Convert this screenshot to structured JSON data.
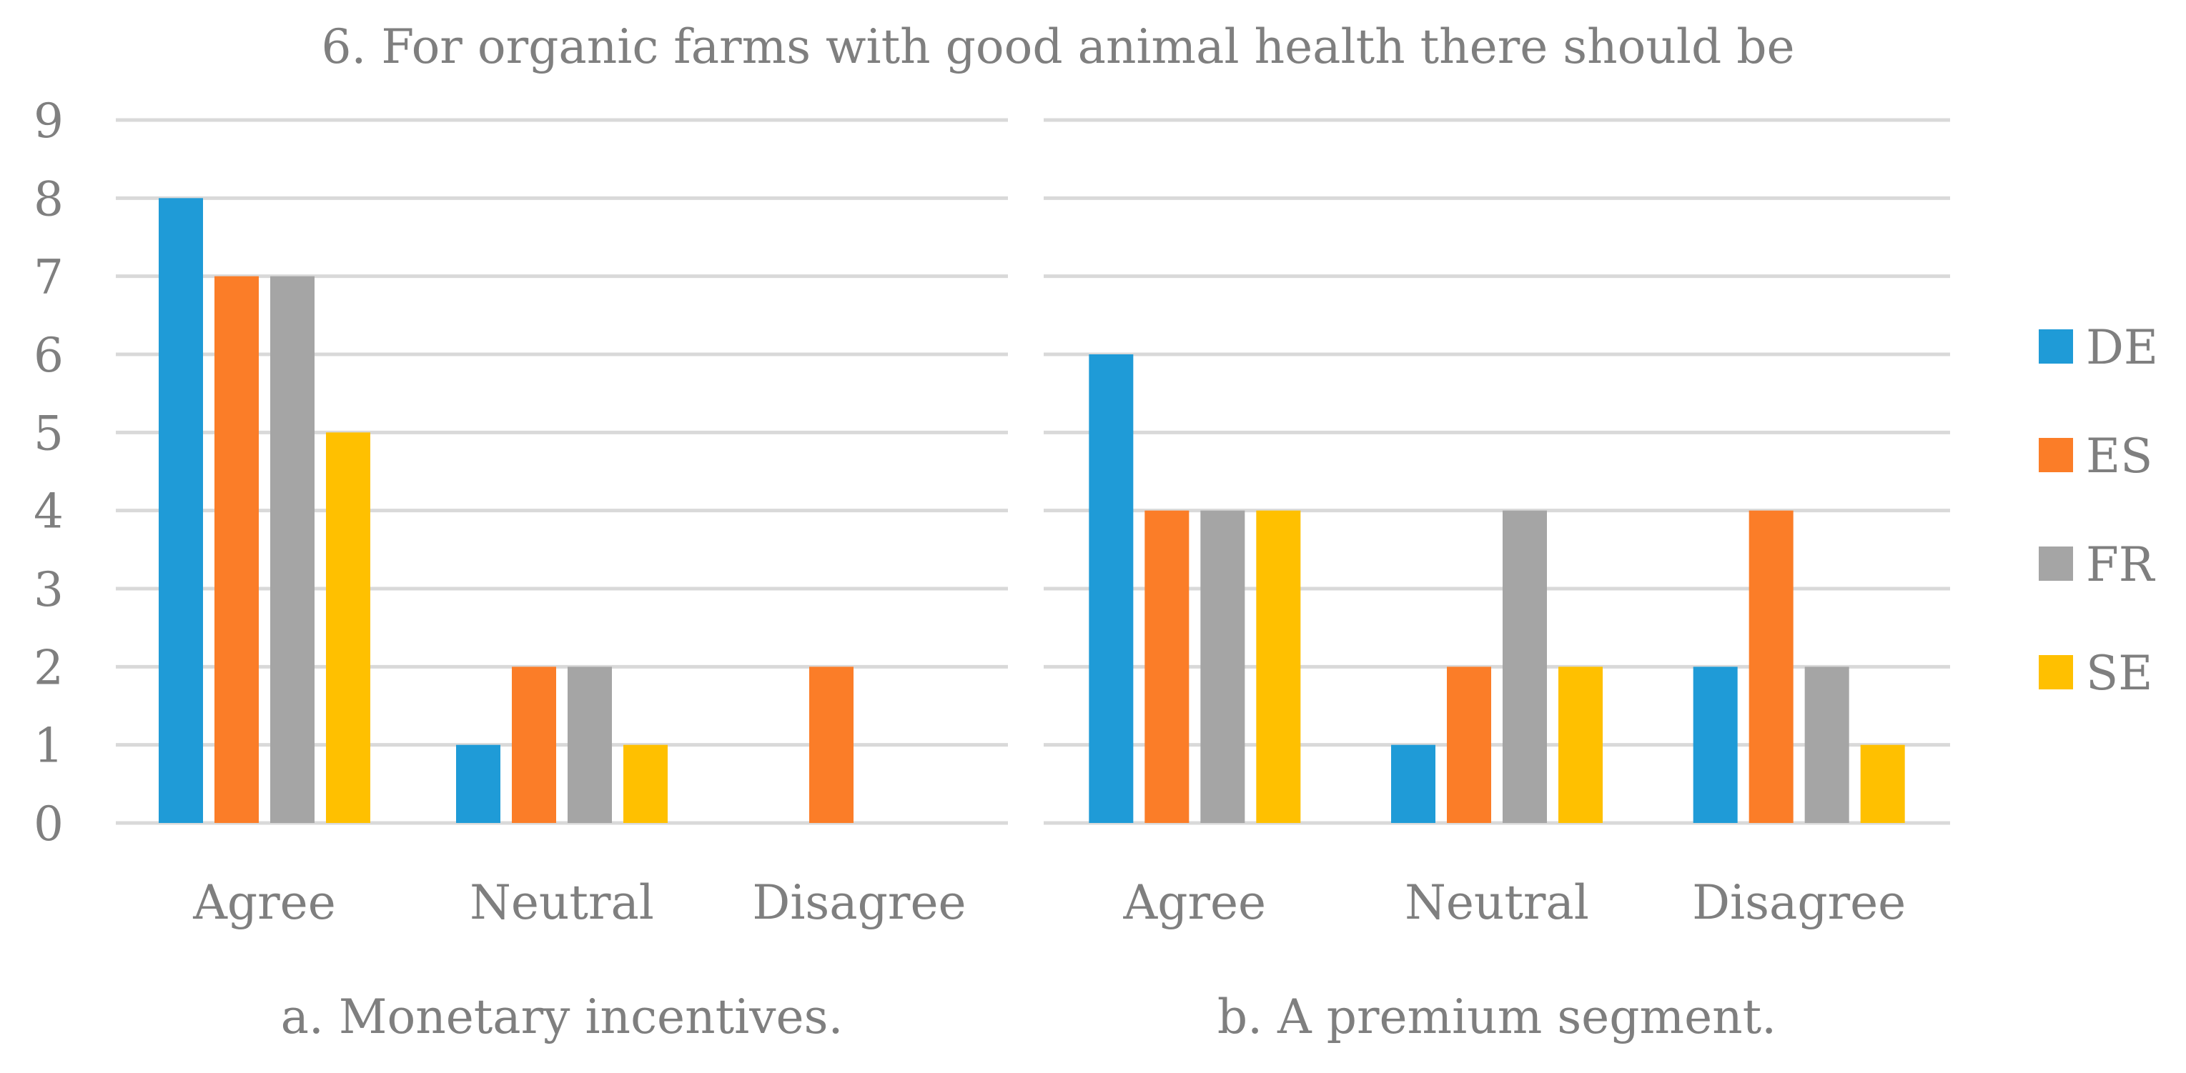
{
  "chart_data": {
    "type": "bar",
    "title": "6. For organic farms with good animal health there should be",
    "ylim": [
      0,
      9
    ],
    "yticks": [
      0,
      1,
      2,
      3,
      4,
      5,
      6,
      7,
      8,
      9
    ],
    "grid": true,
    "legend_position": "right",
    "categories": [
      "Agree",
      "Neutral",
      "Disagree"
    ],
    "series_names": [
      "DE",
      "ES",
      "FR",
      "SE"
    ],
    "series_colors": [
      "#1f9bd7",
      "#fb7d28",
      "#a5a5a5",
      "#ffc000"
    ],
    "text_color": "#7f7f7f",
    "grid_color": "#d9d9d9",
    "panels": [
      {
        "xlabel": "a. Monetary incentives.",
        "series": [
          {
            "name": "DE",
            "values": [
              8,
              1,
              0
            ]
          },
          {
            "name": "ES",
            "values": [
              7,
              2,
              2
            ]
          },
          {
            "name": "FR",
            "values": [
              7,
              2,
              0
            ]
          },
          {
            "name": "SE",
            "values": [
              5,
              1,
              0
            ]
          }
        ]
      },
      {
        "xlabel": "b. A premium segment.",
        "series": [
          {
            "name": "DE",
            "values": [
              6,
              1,
              2
            ]
          },
          {
            "name": "ES",
            "values": [
              4,
              2,
              4
            ]
          },
          {
            "name": "FR",
            "values": [
              4,
              4,
              2
            ]
          },
          {
            "name": "SE",
            "values": [
              4,
              2,
              1
            ]
          }
        ]
      }
    ]
  }
}
